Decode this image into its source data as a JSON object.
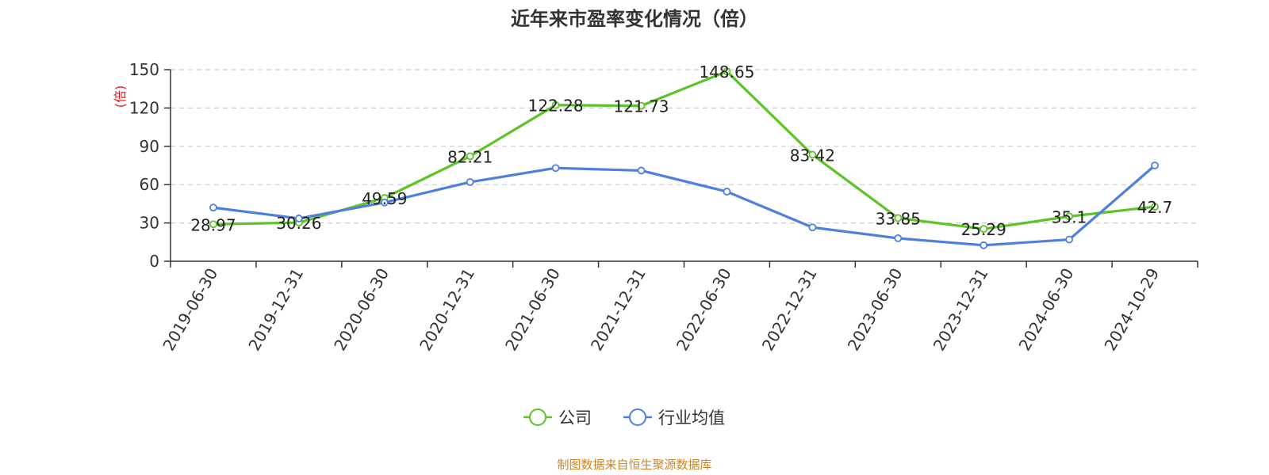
{
  "chart_data": {
    "type": "line",
    "title": "近年来市盈率变化情况（倍）",
    "y_unit": "(倍)",
    "categories": [
      "2019-06-30",
      "2019-12-31",
      "2020-06-30",
      "2020-12-31",
      "2021-06-30",
      "2021-12-31",
      "2022-06-30",
      "2022-12-31",
      "2023-06-30",
      "2023-12-31",
      "2024-06-30",
      "2024-10-29"
    ],
    "ylim": [
      0,
      150
    ],
    "yticks": [
      0,
      30,
      60,
      90,
      120,
      150
    ],
    "grid": true,
    "legend_position": "bottom",
    "series": [
      {
        "name": "公司",
        "color": "#5cc424",
        "values": [
          28.97,
          30.26,
          49.59,
          82.21,
          122.28,
          121.73,
          148.65,
          83.42,
          33.85,
          25.29,
          35.1,
          42.7
        ],
        "labels": [
          "28.97",
          "30.26",
          "49.59",
          "82.21",
          "122.28",
          "121.73",
          "148.65",
          "83.42",
          "33.85",
          "25.29",
          "35.1",
          "42.7"
        ]
      },
      {
        "name": "行业均值",
        "color": "#4e7fe0",
        "values": [
          42,
          33.5,
          46,
          62,
          73,
          71,
          54.5,
          26.5,
          18,
          12.5,
          17,
          75
        ]
      }
    ],
    "source": "制图数据来自恒生聚源数据库"
  }
}
